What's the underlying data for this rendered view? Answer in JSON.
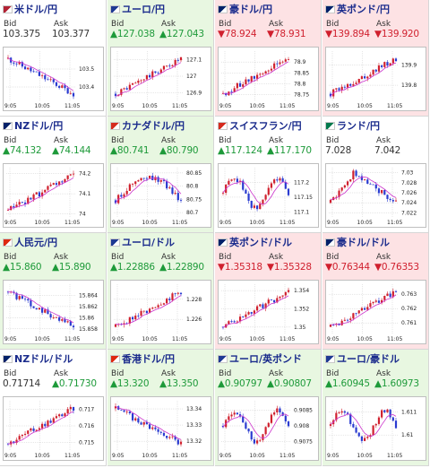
{
  "colors": {
    "up": "#1e9a3a",
    "down": "#d0202e",
    "candle_up": "#d0202e",
    "candle_down": "#2a3bd0",
    "ma": "#cc33cc",
    "grid": "#cccccc"
  },
  "x_ticks": [
    "9:05",
    "10:05",
    "11:05"
  ],
  "cards": [
    {
      "name": "米ドル/円",
      "flag": "us-flag-icon",
      "trend": "neutral",
      "bid_label": "Bid",
      "ask_label": "Ask",
      "bid": "103.375",
      "ask": "103.377",
      "chart_data": {
        "type": "candlestick",
        "shape": "fall",
        "y_ticks": [
          "103.5",
          "103.4"
        ],
        "ylim": [
          103.32,
          103.6
        ]
      }
    },
    {
      "name": "ユーロ/円",
      "flag": "eu-flag-icon",
      "trend": "up",
      "bid_label": "Bid",
      "ask_label": "Ask",
      "bid": "▲127.038",
      "ask": "▲127.043",
      "chart_data": {
        "type": "candlestick",
        "shape": "rise",
        "y_ticks": [
          "127.1",
          "127",
          "126.9"
        ],
        "ylim": [
          126.85,
          127.15
        ]
      }
    },
    {
      "name": "豪ドル/円",
      "flag": "au-flag-icon",
      "trend": "down",
      "bid_label": "Bid",
      "ask_label": "Ask",
      "bid": "▼78.924",
      "ask": "▼78.931",
      "chart_data": {
        "type": "candlestick",
        "shape": "rise",
        "y_ticks": [
          "78.9",
          "78.85",
          "78.8",
          "78.75"
        ],
        "ylim": [
          78.72,
          78.95
        ]
      }
    },
    {
      "name": "英ポンド/円",
      "flag": "gb-flag-icon",
      "trend": "down",
      "bid_label": "Bid",
      "ask_label": "Ask",
      "bid": "▼139.894",
      "ask": "▼139.920",
      "chart_data": {
        "type": "candlestick",
        "shape": "rise",
        "y_ticks": [
          "139.9",
          "139.8"
        ],
        "ylim": [
          139.72,
          139.97
        ]
      }
    },
    {
      "name": "NZドル/円",
      "flag": "nz-flag-icon",
      "trend": "neutral",
      "bid_label": "Bid",
      "ask_label": "Ask",
      "bid": "▲74.132",
      "ask": "▲74.144",
      "chart_data": {
        "type": "candlestick",
        "shape": "rise",
        "y_ticks": [
          "74.2",
          "74.1",
          "74"
        ],
        "ylim": [
          73.98,
          74.23
        ]
      }
    },
    {
      "name": "カナダドル/円",
      "flag": "ca-flag-icon",
      "trend": "up",
      "bid_label": "Bid",
      "ask_label": "Ask",
      "bid": "▲80.741",
      "ask": "▲80.790",
      "chart_data": {
        "type": "candlestick",
        "shape": "hump",
        "y_ticks": [
          "80.85",
          "80.8",
          "80.75",
          "80.7"
        ],
        "ylim": [
          80.68,
          80.87
        ]
      }
    },
    {
      "name": "スイスフラン/円",
      "flag": "ch-flag-icon",
      "trend": "neutral",
      "bid_label": "Bid",
      "ask_label": "Ask",
      "bid": "▲117.124",
      "ask": "▲117.170",
      "chart_data": {
        "type": "candlestick",
        "shape": "wave",
        "y_ticks": [
          "117.2",
          "117.15",
          "117.1"
        ],
        "ylim": [
          117.08,
          117.25
        ]
      }
    },
    {
      "name": "ランド/円",
      "flag": "za-flag-icon",
      "trend": "neutral",
      "bid_label": "Bid",
      "ask_label": "Ask",
      "bid": "7.028",
      "ask": "7.042",
      "chart_data": {
        "type": "candlestick",
        "shape": "humpfall",
        "y_ticks": [
          "7.03",
          "7.028",
          "7.026",
          "7.024",
          "7.022"
        ],
        "ylim": [
          7.021,
          7.031
        ]
      }
    },
    {
      "name": "人民元/円",
      "flag": "cn-flag-icon",
      "trend": "up",
      "bid_label": "Bid",
      "ask_label": "Ask",
      "bid": "▲15.860",
      "ask": "▲15.890",
      "chart_data": {
        "type": "candlestick",
        "shape": "fall",
        "y_ticks": [
          "15.864",
          "15.862",
          "15.86",
          "15.858"
        ],
        "ylim": [
          15.857,
          15.866
        ]
      }
    },
    {
      "name": "ユーロ/ドル",
      "flag": "eu-flag-icon",
      "trend": "up",
      "bid_label": "Bid",
      "ask_label": "Ask",
      "bid": "▲1.22886",
      "ask": "▲1.22890",
      "chart_data": {
        "type": "candlestick",
        "shape": "rise",
        "y_ticks": [
          "1.228",
          "1.226"
        ],
        "ylim": [
          1.2245,
          1.2295
        ]
      }
    },
    {
      "name": "英ポンド/ドル",
      "flag": "gb-flag-icon",
      "trend": "down",
      "bid_label": "Bid",
      "ask_label": "Ask",
      "bid": "▼1.35318",
      "ask": "▼1.35328",
      "chart_data": {
        "type": "candlestick",
        "shape": "rise",
        "y_ticks": [
          "1.354",
          "1.352",
          "1.35"
        ],
        "ylim": [
          1.3492,
          1.3547
        ]
      }
    },
    {
      "name": "豪ドル/ドル",
      "flag": "au-flag-icon",
      "trend": "down",
      "bid_label": "Bid",
      "ask_label": "Ask",
      "bid": "▼0.76344",
      "ask": "▼0.76353",
      "chart_data": {
        "type": "candlestick",
        "shape": "rise",
        "y_ticks": [
          "0.763",
          "0.762",
          "0.761"
        ],
        "ylim": [
          0.7602,
          0.7637
        ]
      }
    },
    {
      "name": "NZドル/ドル",
      "flag": "nz-flag-icon",
      "trend": "neutral",
      "bid_label": "Bid",
      "ask_label": "Ask",
      "bid": "0.71714",
      "ask": "▲0.71730",
      "chart_data": {
        "type": "candlestick",
        "shape": "rise",
        "y_ticks": [
          "0.717",
          "0.716",
          "0.715"
        ],
        "ylim": [
          0.7145,
          0.7175
        ]
      }
    },
    {
      "name": "香港ドル/円",
      "flag": "hk-flag-icon",
      "trend": "up",
      "bid_label": "Bid",
      "ask_label": "Ask",
      "bid": "▲13.320",
      "ask": "▲13.350",
      "chart_data": {
        "type": "candlestick",
        "shape": "fall",
        "y_ticks": [
          "13.34",
          "13.33",
          "13.32"
        ],
        "ylim": [
          13.314,
          13.345
        ]
      }
    },
    {
      "name": "ユーロ/英ポンド",
      "flag": "eu-flag-icon",
      "trend": "up",
      "bid_label": "Bid",
      "ask_label": "Ask",
      "bid": "▲0.90797",
      "ask": "▲0.90807",
      "chart_data": {
        "type": "candlestick",
        "shape": "wave",
        "y_ticks": [
          "0.9085",
          "0.908",
          "0.9075"
        ],
        "ylim": [
          0.9072,
          0.9088
        ]
      }
    },
    {
      "name": "ユーロ/豪ドル",
      "flag": "eu-flag-icon",
      "trend": "up",
      "bid_label": "Bid",
      "ask_label": "Ask",
      "bid": "▲1.60945",
      "ask": "▲1.60973",
      "chart_data": {
        "type": "candlestick",
        "shape": "wave",
        "y_ticks": [
          "1.611",
          "1.61"
        ],
        "ylim": [
          1.6093,
          1.6115
        ]
      }
    }
  ]
}
